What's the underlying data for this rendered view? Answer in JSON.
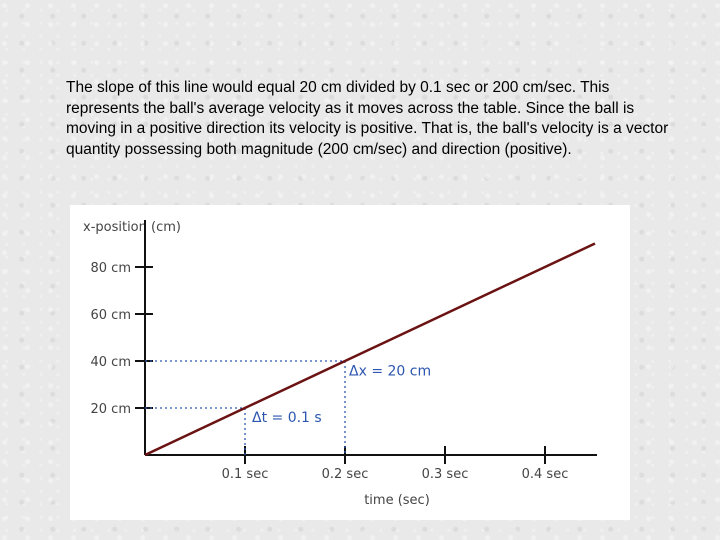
{
  "slide": {
    "paragraph": "The slope of this line would equal 20 cm divided by 0.1 sec or 200 cm/sec. This represents the ball's average velocity as it moves across the table. Since the ball is moving in a positive direction its velocity is positive. That is, the ball's velocity is a vector quantity possessing both magnitude (200 cm/sec) and direction (positive)."
  },
  "chart_data": {
    "type": "line",
    "title": "",
    "xlabel": "time (sec)",
    "ylabel": "x-position (cm)",
    "xlim": [
      0,
      0.45
    ],
    "ylim": [
      0,
      100
    ],
    "x_ticks": [
      {
        "value": 0.1,
        "label": "0.1 sec"
      },
      {
        "value": 0.2,
        "label": "0.2 sec"
      },
      {
        "value": 0.3,
        "label": "0.3 sec"
      },
      {
        "value": 0.4,
        "label": "0.4 sec"
      }
    ],
    "y_ticks": [
      {
        "value": 20,
        "label": "20 cm"
      },
      {
        "value": 40,
        "label": "40 cm"
      },
      {
        "value": 60,
        "label": "60 cm"
      },
      {
        "value": 80,
        "label": "80 cm"
      }
    ],
    "series": [
      {
        "values": [
          [
            0,
            0
          ],
          [
            0.45,
            90
          ]
        ]
      }
    ],
    "annotation_triangle": {
      "from": [
        0.1,
        20
      ],
      "to": [
        0.2,
        40
      ],
      "dt_label": "Δt = 0.1 s",
      "dx_label": "Δx = 20 cm"
    },
    "colors": {
      "line": "#6b1212",
      "axis": "#111111",
      "guide": "#2c56b0",
      "label": "#444444"
    },
    "grid": false
  }
}
